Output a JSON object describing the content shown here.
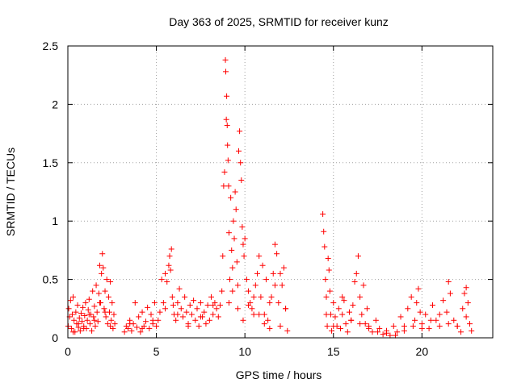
{
  "chart_data": {
    "type": "scatter",
    "title": "Day 363 of 2025, SRMTID for receiver kunz",
    "xlabel": "GPS time / hours",
    "ylabel": "SRMTID / TECUs",
    "xlim": [
      0,
      24
    ],
    "ylim": [
      0,
      2.5
    ],
    "xticks": [
      0,
      5,
      10,
      15,
      20
    ],
    "yticks": [
      0,
      0.5,
      1,
      1.5,
      2,
      2.5
    ],
    "xtick_labels": [
      "0",
      "5",
      "10",
      "15",
      "20"
    ],
    "ytick_labels": [
      "0",
      "0.5",
      "1",
      "1.5",
      "2",
      "2.5"
    ],
    "grid": true,
    "marker": "+",
    "color": "#ff0000",
    "series": [
      {
        "name": "SRMTID",
        "x": [
          0.02,
          0.05,
          0.1,
          0.15,
          0.2,
          0.25,
          0.3,
          0.35,
          0.4,
          0.45,
          0.5,
          0.55,
          0.6,
          0.65,
          0.7,
          0.75,
          0.8,
          0.85,
          0.9,
          0.95,
          1.0,
          1.05,
          1.1,
          1.15,
          1.2,
          1.25,
          1.3,
          1.35,
          1.4,
          1.45,
          1.5,
          1.55,
          1.6,
          1.65,
          1.7,
          1.75,
          1.8,
          1.85,
          1.9,
          1.95,
          2.0,
          2.05,
          2.1,
          2.15,
          2.2,
          2.25,
          2.3,
          2.35,
          2.4,
          2.45,
          2.5,
          2.55,
          2.6,
          2.65,
          3.2,
          3.3,
          3.4,
          3.5,
          3.6,
          3.7,
          3.8,
          3.9,
          4.0,
          4.1,
          4.2,
          4.3,
          4.4,
          4.5,
          4.6,
          4.7,
          4.8,
          4.9,
          5.0,
          5.1,
          5.2,
          5.3,
          5.4,
          5.5,
          5.6,
          5.7,
          5.75,
          5.8,
          5.85,
          5.9,
          5.95,
          6.0,
          6.1,
          6.2,
          6.3,
          6.4,
          6.5,
          6.6,
          6.7,
          6.8,
          6.9,
          7.0,
          7.1,
          7.2,
          7.3,
          7.4,
          7.5,
          7.6,
          7.7,
          7.8,
          7.9,
          8.0,
          8.1,
          8.2,
          8.3,
          8.4,
          8.5,
          8.6,
          8.7,
          8.75,
          8.8,
          8.85,
          8.9,
          8.92,
          8.95,
          8.97,
          9.0,
          9.02,
          9.05,
          9.08,
          9.1,
          9.15,
          9.2,
          9.25,
          9.3,
          9.35,
          9.4,
          9.45,
          9.5,
          9.55,
          9.6,
          9.65,
          9.7,
          9.75,
          9.8,
          9.85,
          9.9,
          9.95,
          10.0,
          10.1,
          10.2,
          10.3,
          10.4,
          10.5,
          10.6,
          10.7,
          10.8,
          10.9,
          11.0,
          11.1,
          11.2,
          11.3,
          11.4,
          11.5,
          11.6,
          11.7,
          11.8,
          11.9,
          12.0,
          12.1,
          12.2,
          12.3,
          12.4,
          14.4,
          14.45,
          14.5,
          14.55,
          14.6,
          14.65,
          14.7,
          14.75,
          14.8,
          14.85,
          14.9,
          15.0,
          15.1,
          15.2,
          15.3,
          15.4,
          15.5,
          15.6,
          15.7,
          15.8,
          15.9,
          16.0,
          16.1,
          16.2,
          16.3,
          16.4,
          16.5,
          16.6,
          16.7,
          16.8,
          16.9,
          17.0,
          17.2,
          17.4,
          17.6,
          17.8,
          18.0,
          18.2,
          18.4,
          18.6,
          18.8,
          19.0,
          19.2,
          19.4,
          19.6,
          19.7,
          19.8,
          19.9,
          20.0,
          20.2,
          20.4,
          20.6,
          20.8,
          21.0,
          21.2,
          21.4,
          21.5,
          21.6,
          21.8,
          22.0,
          22.2,
          22.3,
          22.4,
          22.5,
          22.6,
          22.7,
          22.8,
          0.3,
          0.6,
          0.9,
          1.2,
          1.5,
          1.8,
          2.1,
          2.4,
          3.5,
          4.2,
          4.8,
          5.5,
          6.2,
          6.8,
          7.5,
          8.2,
          9.1,
          9.3,
          9.6,
          9.9,
          10.2,
          10.5,
          10.8,
          11.1,
          11.4,
          11.7,
          12.0,
          12.3,
          14.6,
          15.0,
          15.5,
          16.0,
          16.5,
          17.0,
          17.5,
          18.0,
          18.5,
          19.0,
          19.5,
          20.0,
          20.5,
          21.0,
          21.5,
          22.0,
          22.5
        ],
        "y": [
          0.1,
          0.25,
          0.18,
          0.32,
          0.08,
          0.2,
          0.35,
          0.15,
          0.05,
          0.22,
          0.12,
          0.28,
          0.09,
          0.17,
          0.06,
          0.21,
          0.14,
          0.26,
          0.1,
          0.19,
          0.3,
          0.08,
          0.15,
          0.24,
          0.33,
          0.12,
          0.2,
          0.06,
          0.4,
          0.18,
          0.27,
          0.1,
          0.45,
          0.22,
          0.14,
          0.38,
          0.62,
          0.3,
          0.55,
          0.72,
          0.6,
          0.25,
          0.4,
          0.18,
          0.5,
          0.12,
          0.35,
          0.22,
          0.48,
          0.15,
          0.3,
          0.08,
          0.2,
          0.12,
          0.05,
          0.1,
          0.08,
          0.15,
          0.06,
          0.12,
          0.3,
          0.09,
          0.18,
          0.05,
          0.22,
          0.1,
          0.14,
          0.26,
          0.08,
          0.2,
          0.12,
          0.3,
          0.1,
          0.15,
          0.22,
          0.5,
          0.3,
          0.55,
          0.48,
          0.62,
          0.7,
          0.58,
          0.76,
          0.35,
          0.28,
          0.2,
          0.15,
          0.3,
          0.42,
          0.25,
          0.18,
          0.35,
          0.22,
          0.12,
          0.28,
          0.2,
          0.32,
          0.15,
          0.25,
          0.1,
          0.3,
          0.18,
          0.22,
          0.12,
          0.28,
          0.15,
          0.35,
          0.2,
          0.3,
          0.25,
          0.18,
          0.28,
          0.4,
          0.7,
          1.3,
          1.42,
          2.38,
          2.28,
          1.87,
          2.07,
          1.82,
          1.65,
          1.52,
          1.3,
          0.9,
          0.5,
          1.2,
          0.75,
          0.6,
          1.0,
          0.85,
          1.25,
          1.1,
          0.65,
          0.45,
          1.6,
          1.77,
          1.5,
          1.35,
          0.95,
          0.8,
          0.7,
          0.85,
          0.5,
          0.4,
          0.3,
          0.25,
          0.2,
          0.45,
          0.55,
          0.7,
          0.35,
          0.62,
          0.2,
          0.5,
          0.15,
          0.08,
          0.35,
          0.55,
          0.8,
          0.72,
          0.3,
          0.1,
          0.45,
          0.6,
          0.25,
          0.06,
          1.06,
          0.91,
          0.78,
          0.5,
          0.35,
          0.1,
          0.68,
          0.58,
          0.4,
          0.2,
          0.06,
          0.3,
          0.18,
          0.1,
          0.25,
          0.08,
          0.2,
          0.32,
          0.12,
          0.05,
          0.22,
          0.15,
          0.28,
          0.48,
          0.55,
          0.7,
          0.35,
          0.2,
          0.45,
          0.12,
          0.25,
          0.1,
          0.05,
          0.15,
          0.08,
          0.03,
          0.06,
          0.02,
          0.1,
          0.05,
          0.18,
          0.1,
          0.25,
          0.35,
          0.15,
          0.3,
          0.42,
          0.22,
          0.12,
          0.2,
          0.08,
          0.28,
          0.15,
          0.1,
          0.32,
          0.22,
          0.48,
          0.38,
          0.15,
          0.1,
          0.05,
          0.25,
          0.38,
          0.43,
          0.3,
          0.12,
          0.06,
          0.05,
          0.12,
          0.08,
          0.2,
          0.15,
          0.3,
          0.22,
          0.1,
          0.12,
          0.08,
          0.15,
          0.25,
          0.2,
          0.1,
          0.18,
          0.28,
          0.3,
          0.4,
          0.25,
          0.15,
          0.28,
          0.35,
          0.2,
          0.12,
          0.3,
          0.45,
          0.55,
          0.25,
          0.2,
          0.1,
          0.35,
          0.15,
          0.12,
          0.08,
          0.05,
          0.04,
          0.02,
          0.06,
          0.1,
          0.08,
          0.15,
          0.2,
          0.12,
          0.1,
          0.18
        ]
      }
    ]
  }
}
